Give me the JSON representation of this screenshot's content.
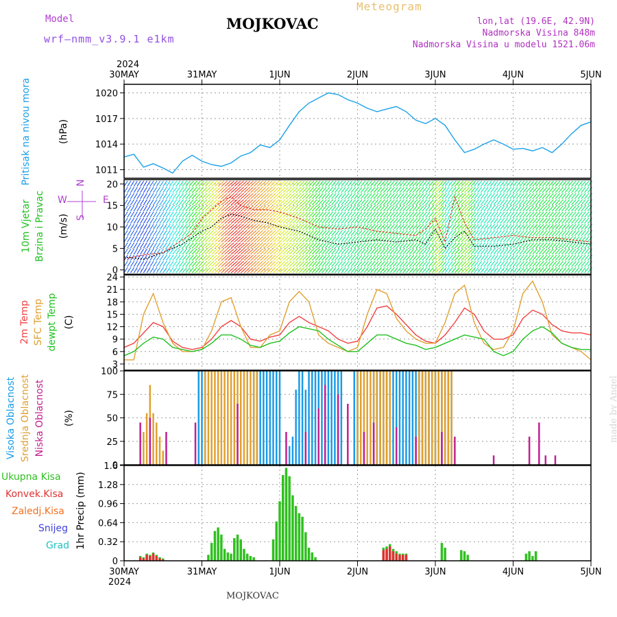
{
  "header": {
    "station": "MOJKOVAC",
    "model_label": "Model",
    "model_name": "wrf—nmm_v3.9.1  e1km",
    "meteogram": "Meteogram",
    "lonlat": "lon,lat (19.6E, 42.9N)",
    "altitude": "Nadmorska Visina 848m",
    "model_altitude": "Nadmorska Visina u modelu 1521.06m",
    "year": "2024",
    "credit": "made by Angel"
  },
  "footer": {
    "station": "MOJKOVAC"
  },
  "time_axis": {
    "ticks": [
      "30MAY",
      "31MAY",
      "1JUN",
      "2JUN",
      "3JUN",
      "4JUN",
      "5JUN"
    ],
    "range_hours": [
      0,
      144
    ]
  },
  "colors": {
    "pressure": "#1aa0e8",
    "wind_speed": "#000000",
    "wind_gust": "#e03020",
    "temp2m": "#f04040",
    "sfc_temp": "#e0a030",
    "dewpoint": "#20c020",
    "high_cloud": "#1a9be6",
    "mid_cloud": "#e0a030",
    "low_cloud": "#c02090",
    "total_precip": "#30c020",
    "conv_precip": "#e03030",
    "frozen": "#f07020",
    "snow": "#4040e0",
    "graupel": "#20c0c0"
  },
  "chart_data": [
    {
      "type": "line",
      "panel": "pressure",
      "ylabel": "(hPa)",
      "side_label": "Pritisak na nivou mora",
      "yticks": [
        1011,
        1014,
        1017,
        1020
      ],
      "ylim": [
        1010,
        1021
      ],
      "grid": true,
      "series": [
        {
          "x": [
            0,
            3,
            6,
            9,
            12,
            15,
            18,
            21,
            24,
            27,
            30,
            33,
            36,
            39,
            42,
            45,
            48,
            51,
            54,
            57,
            60,
            63,
            66,
            69,
            72,
            75,
            78,
            81,
            84,
            87,
            90,
            93,
            96,
            99,
            102,
            105,
            108,
            111,
            114,
            117,
            120,
            123,
            126,
            129,
            132,
            135,
            138,
            141,
            144
          ],
          "values": [
            1012.5,
            1012.8,
            1011.3,
            1011.7,
            1011.2,
            1010.6,
            1012.0,
            1012.7,
            1012.0,
            1011.6,
            1011.4,
            1011.8,
            1012.6,
            1013.0,
            1013.9,
            1013.6,
            1014.5,
            1016.2,
            1017.8,
            1018.8,
            1019.4,
            1020.0,
            1019.8,
            1019.2,
            1018.8,
            1018.2,
            1017.8,
            1018.1,
            1018.4,
            1017.8,
            1016.8,
            1016.4,
            1017.0,
            1016.2,
            1014.5,
            1013.0,
            1013.4,
            1014.0,
            1014.5,
            1014.0,
            1013.4,
            1013.5,
            1013.2,
            1013.6,
            1013.0,
            1014.0,
            1015.2,
            1016.2,
            1016.6
          ]
        }
      ]
    },
    {
      "type": "line",
      "panel": "wind",
      "ylabel": "(m/s)",
      "side_label": "10m Vjetar Brzina i Pravac",
      "legend_compass": [
        "N",
        "S",
        "W",
        "E"
      ],
      "yticks": [
        0,
        5,
        10,
        15,
        20
      ],
      "ylim": [
        -1,
        21
      ],
      "grid": true,
      "series": [
        {
          "name": "speed",
          "x": [
            0,
            6,
            12,
            18,
            21,
            24,
            27,
            30,
            33,
            36,
            40,
            44,
            48,
            54,
            60,
            66,
            72,
            78,
            84,
            90,
            93,
            96,
            99,
            102,
            105,
            108,
            114,
            120,
            126,
            132,
            138,
            144
          ],
          "values": [
            3,
            2.5,
            4,
            6,
            7.5,
            9,
            10,
            12,
            13,
            12.5,
            11.5,
            11,
            10,
            9,
            7,
            6,
            6.5,
            7,
            6.5,
            7,
            6,
            9.5,
            5,
            7.5,
            9,
            5.5,
            5.5,
            6,
            7,
            7,
            6.5,
            6
          ]
        },
        {
          "name": "gust",
          "x": [
            0,
            6,
            12,
            18,
            21,
            24,
            27,
            30,
            33,
            36,
            40,
            44,
            48,
            54,
            60,
            66,
            72,
            78,
            84,
            90,
            93,
            96,
            99,
            102,
            105,
            108,
            114,
            120,
            126,
            132,
            138,
            144
          ],
          "values": [
            2.5,
            3.5,
            4,
            7,
            8.5,
            12,
            14,
            16,
            17,
            15,
            14,
            14,
            13.5,
            12,
            10,
            9.5,
            10,
            9,
            8.5,
            8,
            9.5,
            12,
            6.5,
            17,
            11,
            7,
            7.5,
            8,
            7.5,
            7.5,
            7,
            6.5
          ]
        }
      ]
    },
    {
      "type": "line",
      "panel": "temperature",
      "ylabel": "(C)",
      "side_label": [
        "2m Temp",
        "SFC Temp",
        "dewpt Temp"
      ],
      "yticks": [
        3,
        6,
        9,
        12,
        15,
        18,
        21,
        24
      ],
      "ylim": [
        1.5,
        24.5
      ],
      "grid": true,
      "series": [
        {
          "name": "2m Temp",
          "x": [
            0,
            3,
            6,
            9,
            12,
            15,
            18,
            21,
            24,
            27,
            30,
            33,
            36,
            39,
            42,
            45,
            48,
            51,
            54,
            57,
            60,
            63,
            66,
            69,
            72,
            75,
            78,
            81,
            84,
            87,
            90,
            93,
            96,
            99,
            102,
            105,
            108,
            111,
            114,
            117,
            120,
            123,
            126,
            129,
            132,
            135,
            138,
            141,
            144
          ],
          "values": [
            7,
            8,
            10.5,
            13,
            12,
            8.5,
            7,
            6.5,
            7,
            9,
            12,
            13.5,
            12,
            9,
            8.5,
            9.5,
            10,
            13,
            14.5,
            13,
            12,
            11,
            9,
            8,
            8.5,
            12,
            16.5,
            17,
            15,
            12.5,
            10,
            8.5,
            8,
            10,
            13,
            16.5,
            15,
            11,
            9,
            9,
            10,
            14,
            16,
            15,
            12.5,
            11,
            10.5,
            10.5,
            10
          ]
        },
        {
          "name": "SFC Temp",
          "x": [
            0,
            3,
            6,
            9,
            12,
            15,
            18,
            21,
            24,
            27,
            30,
            33,
            36,
            39,
            42,
            45,
            48,
            51,
            54,
            57,
            60,
            63,
            66,
            69,
            72,
            75,
            78,
            81,
            84,
            87,
            90,
            93,
            96,
            99,
            102,
            105,
            108,
            111,
            114,
            117,
            120,
            123,
            126,
            129,
            132,
            135,
            138,
            141,
            144
          ],
          "values": [
            4,
            4,
            15,
            20,
            13,
            8,
            6,
            6,
            6.5,
            11,
            18,
            19,
            12,
            7,
            7,
            10,
            11,
            18,
            20.5,
            18,
            10,
            8,
            7,
            6,
            7,
            15,
            21,
            20,
            14,
            11,
            9,
            8,
            8,
            13,
            20,
            22,
            13,
            8,
            6.5,
            7,
            11,
            20,
            23,
            18,
            10,
            8,
            7,
            6,
            4
          ]
        },
        {
          "name": "dewpt Temp",
          "x": [
            0,
            3,
            6,
            9,
            12,
            15,
            18,
            21,
            24,
            27,
            30,
            33,
            36,
            39,
            42,
            45,
            48,
            51,
            54,
            57,
            60,
            63,
            66,
            69,
            72,
            75,
            78,
            81,
            84,
            87,
            90,
            93,
            96,
            99,
            102,
            105,
            108,
            111,
            114,
            117,
            120,
            123,
            126,
            129,
            132,
            135,
            138,
            141,
            144
          ],
          "values": [
            5,
            6,
            8,
            9.5,
            9,
            7,
            6.5,
            6,
            6.5,
            8,
            10,
            10,
            9,
            7.5,
            7,
            8,
            8.5,
            10.5,
            12,
            11.5,
            11,
            9,
            7.5,
            6,
            6,
            8,
            10,
            10,
            9,
            8,
            7.5,
            6.5,
            7,
            8,
            9,
            10,
            9.5,
            9,
            6,
            5,
            6,
            9,
            11,
            12,
            10.5,
            8,
            7,
            6.5,
            6.5
          ]
        }
      ]
    },
    {
      "type": "bar",
      "panel": "cloud",
      "ylabel": "(%)",
      "side_label": [
        "Visoka Oblacnost",
        "Srednja Oblacnost",
        "Niska Oblacnost"
      ],
      "yticks": [
        0,
        25,
        50,
        75,
        100
      ],
      "ylim": [
        0,
        100
      ],
      "grid": true,
      "series": [
        {
          "name": "Visoka Oblacnost",
          "x": [
            23,
            24,
            25,
            40,
            41,
            42,
            43,
            44,
            45,
            46,
            47,
            48,
            51,
            52,
            53,
            54,
            55,
            56,
            57,
            58,
            59,
            60,
            61,
            62,
            63,
            64,
            65,
            66,
            67,
            71,
            72,
            73,
            77,
            78,
            79,
            80,
            81,
            82,
            83,
            84,
            85,
            86,
            87,
            88,
            89,
            90,
            91,
            92,
            93,
            94,
            95,
            96,
            97,
            98,
            99,
            100,
            101
          ],
          "values": [
            100,
            100,
            100,
            100,
            100,
            100,
            100,
            100,
            100,
            100,
            100,
            100,
            20,
            30,
            80,
            100,
            100,
            80,
            100,
            100,
            100,
            100,
            100,
            100,
            100,
            100,
            100,
            100,
            100,
            100,
            100,
            100,
            100,
            100,
            100,
            100,
            100,
            100,
            100,
            100,
            100,
            100,
            100,
            100,
            100,
            100,
            100,
            100,
            100,
            100,
            100,
            100,
            100,
            100,
            100,
            100,
            100
          ]
        },
        {
          "name": "Srednja Oblacnost",
          "x": [
            6,
            7,
            8,
            9,
            10,
            11,
            12,
            25,
            26,
            27,
            28,
            29,
            30,
            31,
            32,
            33,
            34,
            35,
            36,
            37,
            38,
            39,
            40,
            41,
            72,
            73,
            74,
            75,
            76,
            77,
            78,
            79,
            80,
            81,
            82,
            91,
            92,
            93,
            94,
            95,
            96,
            97,
            98,
            99,
            100,
            101
          ],
          "values": [
            35,
            55,
            85,
            55,
            45,
            30,
            15,
            100,
            100,
            100,
            100,
            100,
            100,
            100,
            100,
            100,
            100,
            100,
            100,
            100,
            100,
            100,
            100,
            100,
            100,
            100,
            100,
            100,
            100,
            100,
            100,
            100,
            100,
            100,
            100,
            100,
            100,
            100,
            100,
            100,
            100,
            100,
            100,
            100,
            100,
            100
          ]
        },
        {
          "name": "Niska Oblacnost",
          "x": [
            5,
            8,
            13,
            22,
            35,
            50,
            56,
            60,
            62,
            66,
            69,
            74,
            77,
            84,
            90,
            98,
            102,
            114,
            125,
            128,
            130,
            133
          ],
          "values": [
            45,
            50,
            35,
            45,
            65,
            35,
            35,
            60,
            85,
            75,
            65,
            35,
            45,
            40,
            30,
            35,
            30,
            10,
            30,
            45,
            10,
            10
          ]
        }
      ]
    },
    {
      "type": "bar",
      "panel": "precip",
      "ylabel": "1hr Precip (mm)",
      "legend": [
        "Ukupna Kisa",
        "Konvek.Kisa",
        "Zaledj.Kisa",
        "Snijeg",
        "Grad"
      ],
      "yticks": [
        0,
        0.32,
        0.64,
        0.96,
        1.28,
        1.6
      ],
      "ylim": [
        0,
        1.6
      ],
      "grid": true,
      "series": [
        {
          "name": "Ukupna Kisa",
          "x": [
            5,
            6,
            7,
            8,
            9,
            10,
            11,
            12,
            26,
            27,
            28,
            29,
            30,
            31,
            32,
            33,
            34,
            35,
            36,
            37,
            38,
            39,
            40,
            46,
            47,
            48,
            49,
            50,
            51,
            52,
            53,
            54,
            55,
            56,
            57,
            58,
            59,
            80,
            81,
            82,
            83,
            84,
            85,
            86,
            87,
            98,
            99,
            104,
            105,
            106,
            124,
            125,
            126,
            127
          ],
          "values": [
            0.08,
            0.06,
            0.12,
            0.1,
            0.14,
            0.1,
            0.06,
            0.04,
            0.1,
            0.3,
            0.5,
            0.56,
            0.44,
            0.2,
            0.14,
            0.12,
            0.38,
            0.44,
            0.36,
            0.2,
            0.12,
            0.08,
            0.06,
            0.36,
            0.66,
            1.0,
            1.44,
            1.56,
            1.42,
            1.1,
            0.92,
            0.8,
            0.74,
            0.48,
            0.22,
            0.14,
            0.06,
            0.22,
            0.24,
            0.28,
            0.2,
            0.16,
            0.12,
            0.12,
            0.12,
            0.3,
            0.22,
            0.18,
            0.16,
            0.1,
            0.12,
            0.16,
            0.08,
            0.16
          ]
        },
        {
          "name": "Konvek.Kisa",
          "x": [
            5,
            6,
            7,
            8,
            9,
            10,
            11,
            12,
            80,
            81,
            82,
            83,
            84,
            85,
            86,
            87
          ],
          "values": [
            0.06,
            0.04,
            0.1,
            0.08,
            0.12,
            0.08,
            0.04,
            0.02,
            0.18,
            0.2,
            0.24,
            0.16,
            0.12,
            0.1,
            0.1,
            0.1
          ]
        }
      ]
    }
  ]
}
